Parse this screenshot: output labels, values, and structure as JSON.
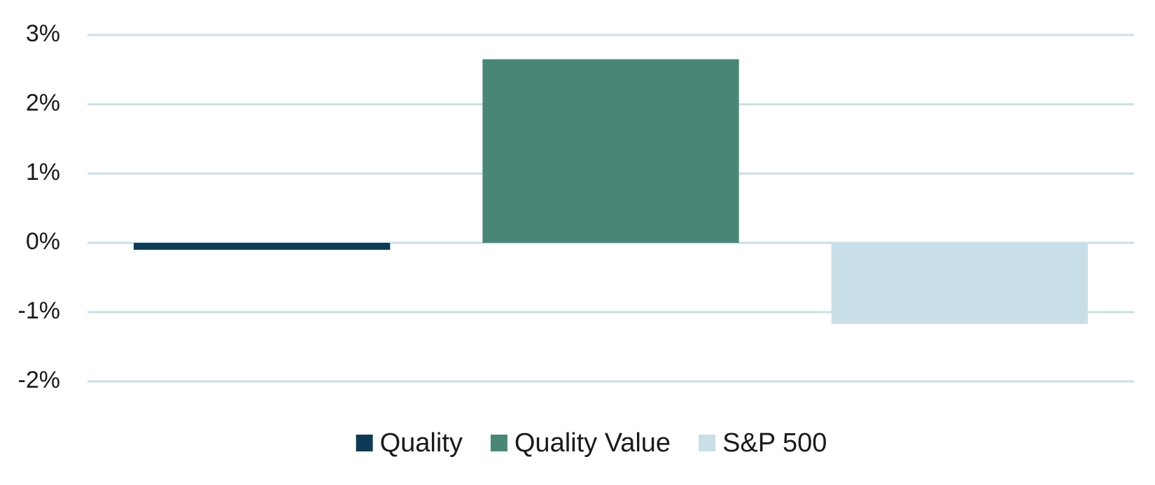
{
  "chart_data": {
    "type": "bar",
    "title": "",
    "xlabel": "",
    "ylabel": "",
    "ylim": [
      -2,
      3
    ],
    "yticks": [
      3,
      2,
      1,
      0,
      -1,
      -2
    ],
    "ytick_labels": [
      "3%",
      "2%",
      "1%",
      "0%",
      "-1%",
      "-2%"
    ],
    "grid": true,
    "legend_placement": "bottom-center",
    "series": [
      {
        "name": "Quality",
        "value": -0.1,
        "color": "#0d3b55"
      },
      {
        "name": "Quality Value",
        "value": 2.65,
        "color": "#488776"
      },
      {
        "name": "S&P 500",
        "value": -1.17,
        "color": "#c9dfe7"
      }
    ],
    "grid_color": "#c9dfe7"
  }
}
